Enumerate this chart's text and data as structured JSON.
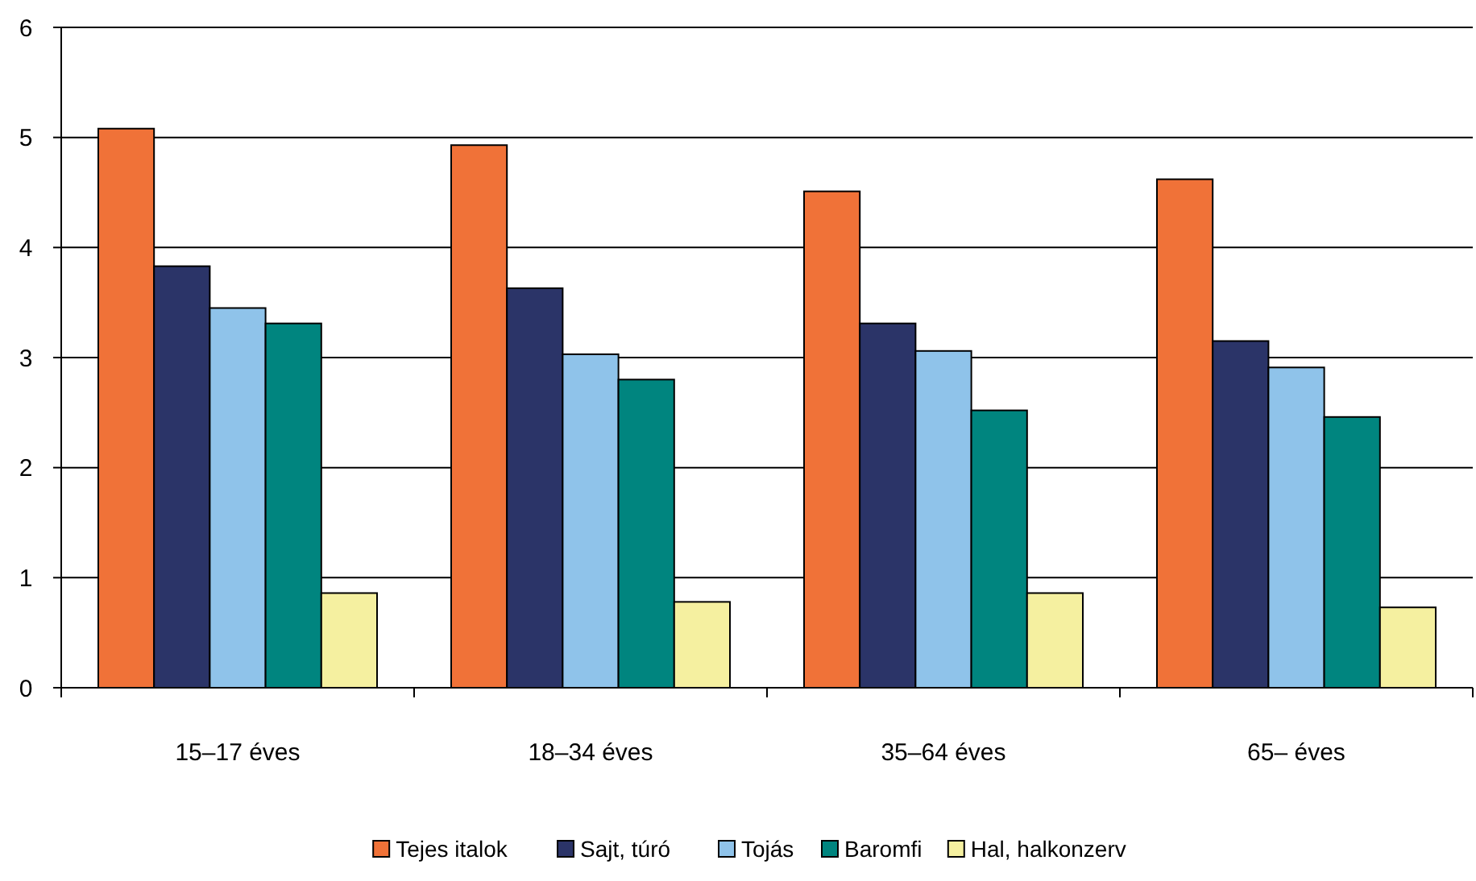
{
  "chart_data": {
    "type": "bar",
    "categories": [
      "15–17 éves",
      "18–34 éves",
      "35–64 éves",
      "65– éves"
    ],
    "series": [
      {
        "name": "Tejes italok",
        "color": "#f07238",
        "values": [
          5.08,
          4.93,
          4.51,
          4.62
        ]
      },
      {
        "name": "Sajt, túró",
        "color": "#2b3468",
        "values": [
          3.83,
          3.63,
          3.31,
          3.15
        ]
      },
      {
        "name": "Tojás",
        "color": "#8fc3ea",
        "values": [
          3.45,
          3.03,
          3.06,
          2.91
        ]
      },
      {
        "name": "Baromfi",
        "color": "#00857f",
        "values": [
          3.31,
          2.8,
          2.52,
          2.46
        ]
      },
      {
        "name": "Hal, halkonzerv",
        "color": "#f5f0a0",
        "values": [
          0.86,
          0.78,
          0.86,
          0.73
        ]
      }
    ],
    "ylim": [
      0,
      6
    ],
    "yticks": [
      0,
      1,
      2,
      3,
      4,
      5,
      6
    ],
    "grid": "y",
    "legend": "bottom"
  }
}
